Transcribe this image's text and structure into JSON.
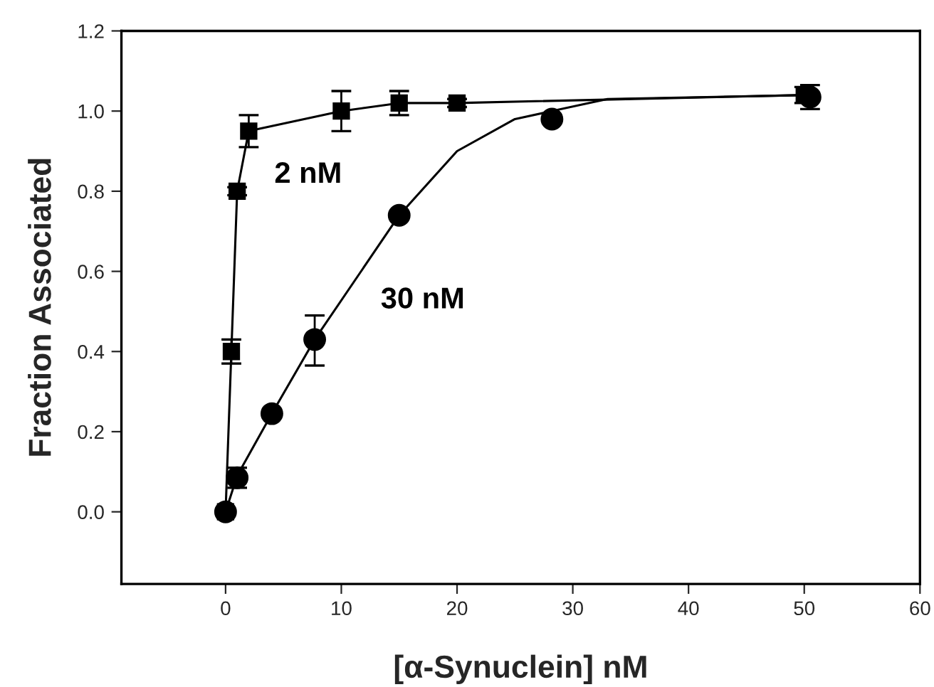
{
  "chart_data": {
    "type": "line",
    "xlabel": "[α-Synuclein] nM",
    "ylabel": "Fraction Associated",
    "xlim": [
      -9,
      60
    ],
    "xticks": [
      0,
      10,
      20,
      30,
      40,
      50,
      60
    ],
    "ylim": [
      -0.18,
      1.2
    ],
    "yticks": [
      {
        "value": 0,
        "label": "0.0"
      },
      {
        "value": 0.2,
        "label": "0.2"
      },
      {
        "value": 0.4,
        "label": "0.4"
      },
      {
        "value": 0.6,
        "label": "0.6"
      },
      {
        "value": 0.8,
        "label": "0.8"
      },
      {
        "value": 1.0,
        "label": "1.0"
      },
      {
        "value": 1.2,
        "label": "1.2"
      }
    ],
    "grid": false,
    "series": [
      {
        "name": "2 nM",
        "marker": "square",
        "color": "#000000",
        "x": [
          0,
          0.5,
          1,
          2,
          10,
          15,
          20,
          50
        ],
        "values": [
          0,
          0.4,
          0.8,
          0.95,
          1.0,
          1.02,
          1.02,
          1.04
        ],
        "errors": [
          null,
          0.03,
          0.01,
          0.04,
          0.05,
          0.03,
          0.01,
          0.02
        ]
      },
      {
        "marker": "none",
        "color": "#000000",
        "x": [
          0,
          1,
          4,
          7.7,
          15,
          20,
          25,
          33,
          50.5
        ],
        "values": [
          0,
          0.09,
          0.245,
          0.43,
          0.74,
          0.9,
          0.98,
          1.03,
          1.04
        ]
      },
      {
        "name": "30 nM",
        "type": "scatter",
        "marker": "circle",
        "color": "#000000",
        "x": [
          0,
          1,
          4,
          7.7,
          15,
          28.2,
          50.5
        ],
        "values": [
          0,
          0.085,
          0.245,
          0.43,
          0.74,
          0.98,
          1.035
        ],
        "errors": [
          null,
          0.025,
          null,
          [
            0.365,
            0.49
          ],
          null,
          null,
          0.03
        ]
      }
    ]
  }
}
